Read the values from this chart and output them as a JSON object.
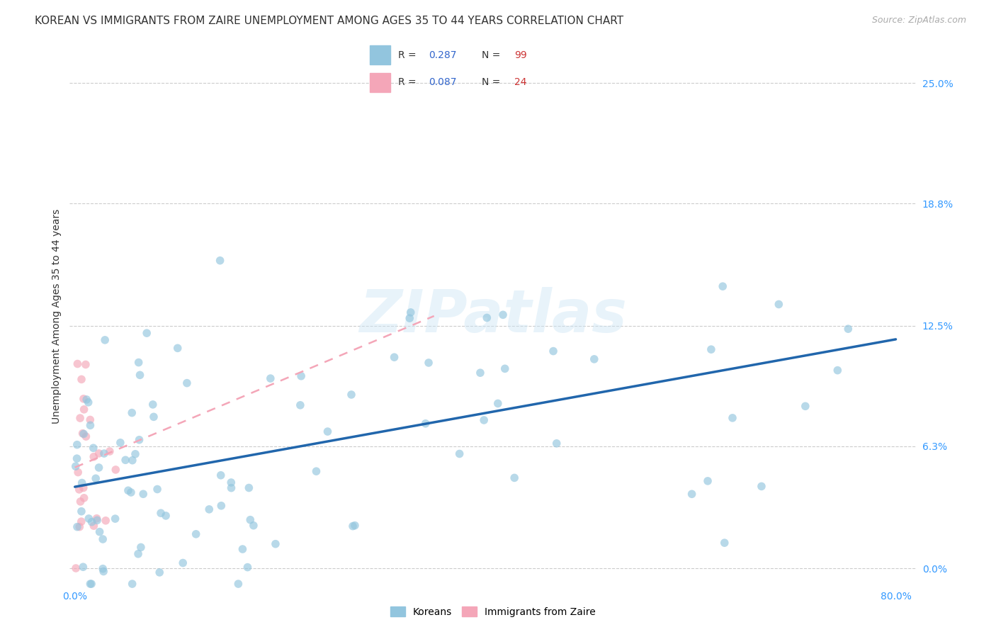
{
  "title": "KOREAN VS IMMIGRANTS FROM ZAIRE UNEMPLOYMENT AMONG AGES 35 TO 44 YEARS CORRELATION CHART",
  "source": "Source: ZipAtlas.com",
  "ylabel_label": "Unemployment Among Ages 35 to 44 years",
  "legend_labels": [
    "Koreans",
    "Immigrants from Zaire"
  ],
  "legend_r_n": [
    {
      "R": "0.287",
      "N": "99",
      "color": "#92c5de"
    },
    {
      "R": "0.087",
      "N": "24",
      "color": "#f4a6b8"
    }
  ],
  "watermark_text": "ZIPatlas",
  "korean_trend_x": [
    0.0,
    0.8
  ],
  "korean_trend_y": [
    0.042,
    0.118
  ],
  "zaire_trend_x": [
    0.0,
    0.35
  ],
  "zaire_trend_y": [
    0.052,
    0.13
  ],
  "xlim": [
    -0.005,
    0.82
  ],
  "ylim": [
    -0.01,
    0.27
  ],
  "ytick_vals": [
    0.0,
    0.063,
    0.125,
    0.188,
    0.25
  ],
  "ytick_labels": [
    "0.0%",
    "6.3%",
    "12.5%",
    "18.8%",
    "25.0%"
  ],
  "xtick_vals": [
    0.0,
    0.1,
    0.2,
    0.3,
    0.4,
    0.5,
    0.6,
    0.7,
    0.8
  ],
  "xtick_labels": [
    "0.0%",
    "",
    "",
    "",
    "",
    "",
    "",
    "",
    "80.0%"
  ],
  "scatter_alpha": 0.65,
  "scatter_size": 70,
  "korean_color": "#92c5de",
  "zaire_color": "#f4a6b8",
  "korean_line_color": "#2166ac",
  "zaire_line_color": "#f4a6b8",
  "background_color": "#ffffff",
  "grid_color": "#cccccc",
  "title_fontsize": 11,
  "axis_label_fontsize": 10,
  "tick_fontsize": 10,
  "right_tick_color": "#3399ff"
}
